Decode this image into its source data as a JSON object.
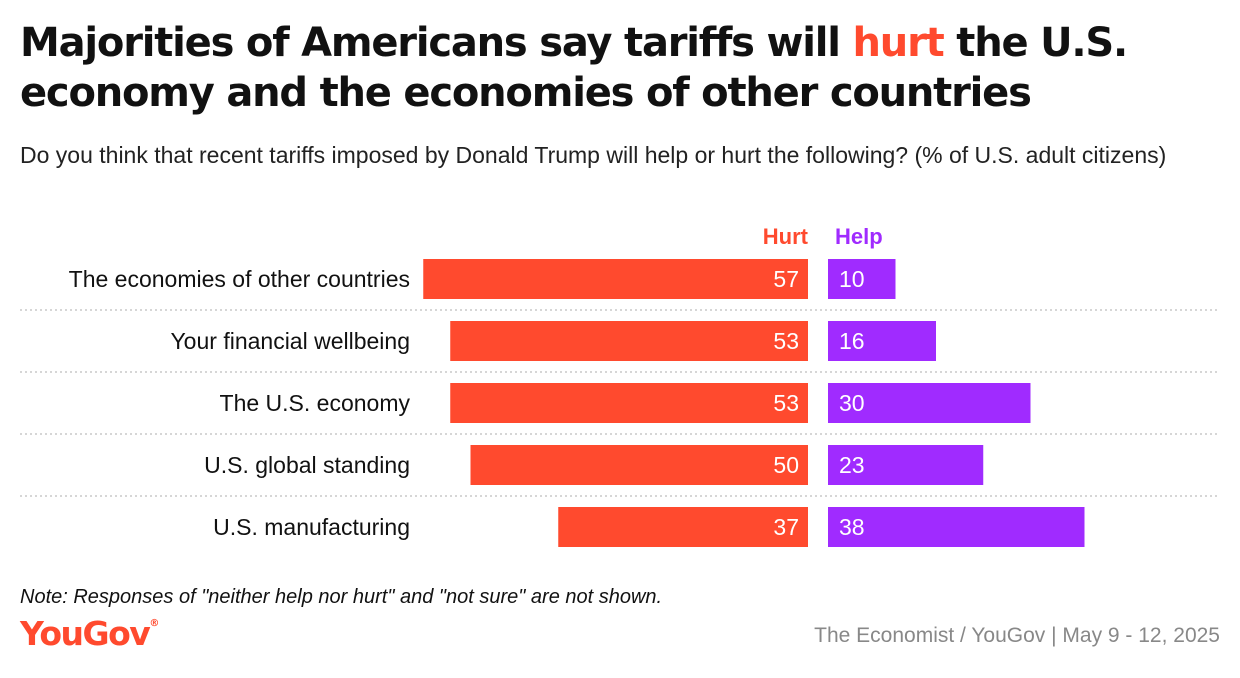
{
  "title": {
    "before": "Majorities of Americans say tariffs will ",
    "highlight": "hurt",
    "after": " the U.S. economy and the economies of other countries"
  },
  "subtitle": "Do you think that recent tariffs imposed by Donald Trump will help or hurt the following? (% of U.S. adult citizens)",
  "colors": {
    "hurt": "#ff4a2e",
    "help": "#a02bff",
    "divider": "#c8c8c8",
    "text": "#111111",
    "source": "#888888"
  },
  "chart_data": {
    "type": "bar",
    "orientation": "horizontal-diverging",
    "categories": [
      "The economies of other countries",
      "Your financial wellbeing",
      "The U.S. economy",
      "U.S. global standing",
      "U.S. manufacturing"
    ],
    "series": [
      {
        "name": "Hurt",
        "values": [
          57,
          53,
          53,
          50,
          37
        ]
      },
      {
        "name": "Help",
        "values": [
          10,
          16,
          30,
          23,
          38
        ]
      }
    ],
    "legend": "top"
  },
  "note": "Note: Responses of \"neither help nor hurt\" and \"not sure\" are not shown.",
  "logo_text": "YouGov",
  "logo_mark": "®",
  "source": "The Economist / YouGov | May 9 - 12, 2025"
}
